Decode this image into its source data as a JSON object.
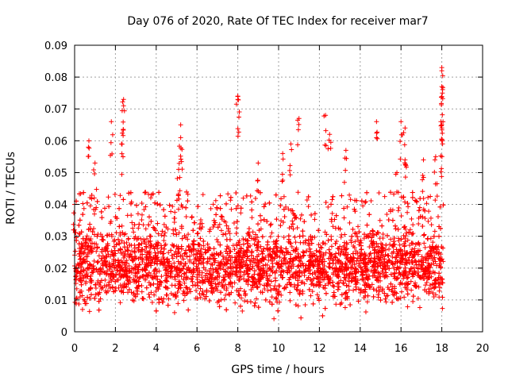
{
  "chart_data": {
    "type": "scatter",
    "title": "Day 076 of 2020, Rate Of TEC Index for receiver mar7",
    "xlabel": "GPS time / hours",
    "ylabel": "ROTI / TECUs",
    "xlim": [
      0,
      20
    ],
    "ylim": [
      0,
      0.09
    ],
    "grid": true,
    "marker": "+",
    "x_ticks": [
      0,
      2,
      4,
      6,
      8,
      10,
      12,
      14,
      16,
      18,
      20
    ],
    "x_tick_labels": [
      "0",
      "2",
      "4",
      "6",
      "8",
      "10",
      "12",
      "14",
      "16",
      "18",
      "20"
    ],
    "y_ticks": [
      0,
      0.01,
      0.02,
      0.03,
      0.04,
      0.05,
      0.06,
      0.07,
      0.08,
      0.09
    ],
    "y_tick_labels": [
      "0",
      "0.01",
      "0.02",
      "0.03",
      "0.04",
      "0.05",
      "0.06",
      "0.07",
      "0.08",
      "0.09"
    ],
    "series": [
      {
        "name": "mar7",
        "color": "#ff0000",
        "x_range": [
          0,
          18.1
        ],
        "notable_points": [
          {
            "x": 0.0,
            "y": 0.04
          },
          {
            "x": 0.7,
            "y": 0.06
          },
          {
            "x": 1.0,
            "y": 0.053
          },
          {
            "x": 1.8,
            "y": 0.066
          },
          {
            "x": 2.4,
            "y": 0.073
          },
          {
            "x": 2.4,
            "y": 0.071
          },
          {
            "x": 2.3,
            "y": 0.059
          },
          {
            "x": 5.2,
            "y": 0.065
          },
          {
            "x": 5.2,
            "y": 0.061
          },
          {
            "x": 5.1,
            "y": 0.051
          },
          {
            "x": 4.9,
            "y": 0.006
          },
          {
            "x": 8.0,
            "y": 0.074
          },
          {
            "x": 8.0,
            "y": 0.073
          },
          {
            "x": 9.0,
            "y": 0.053
          },
          {
            "x": 10.2,
            "y": 0.056
          },
          {
            "x": 10.6,
            "y": 0.059
          },
          {
            "x": 11.0,
            "y": 0.067
          },
          {
            "x": 12.3,
            "y": 0.068
          },
          {
            "x": 12.5,
            "y": 0.062
          },
          {
            "x": 13.3,
            "y": 0.057
          },
          {
            "x": 14.8,
            "y": 0.066
          },
          {
            "x": 16.0,
            "y": 0.066
          },
          {
            "x": 16.2,
            "y": 0.064
          },
          {
            "x": 16.2,
            "y": 0.054
          },
          {
            "x": 15.8,
            "y": 0.05
          },
          {
            "x": 17.1,
            "y": 0.054
          },
          {
            "x": 17.7,
            "y": 0.055
          },
          {
            "x": 18.0,
            "y": 0.083
          },
          {
            "x": 18.0,
            "y": 0.082
          },
          {
            "x": 18.0,
            "y": 0.077
          },
          {
            "x": 18.0,
            "y": 0.065
          },
          {
            "x": 18.0,
            "y": 0.064
          },
          {
            "x": 18.0,
            "y": 0.06
          }
        ],
        "bulk_band": {
          "lower": 0.01,
          "center": 0.021,
          "upper": 0.032
        },
        "bulk_point_count": 4200
      }
    ]
  }
}
